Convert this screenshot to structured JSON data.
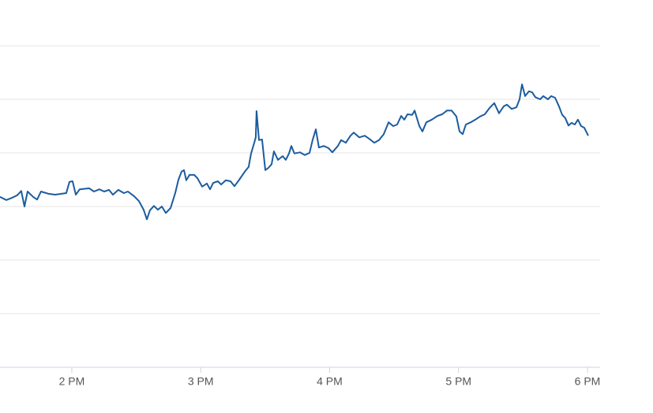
{
  "chart_data": {
    "type": "line",
    "x": [
      13.443,
      13.492,
      13.534,
      13.577,
      13.608,
      13.633,
      13.657,
      13.7,
      13.731,
      13.761,
      13.816,
      13.871,
      13.957,
      13.982,
      14.006,
      14.031,
      14.061,
      14.135,
      14.172,
      14.214,
      14.251,
      14.288,
      14.319,
      14.361,
      14.404,
      14.435,
      14.484,
      14.521,
      14.557,
      14.582,
      14.606,
      14.637,
      14.668,
      14.698,
      14.729,
      14.766,
      14.802,
      14.827,
      14.851,
      14.87,
      14.888,
      14.913,
      14.95,
      14.974,
      15.011,
      15.048,
      15.072,
      15.097,
      15.133,
      15.158,
      15.194,
      15.231,
      15.262,
      15.299,
      15.342,
      15.372,
      15.391,
      15.415,
      15.427,
      15.433,
      15.452,
      15.476,
      15.501,
      15.525,
      15.55,
      15.568,
      15.599,
      15.636,
      15.66,
      15.685,
      15.703,
      15.727,
      15.77,
      15.807,
      15.844,
      15.868,
      15.893,
      15.917,
      15.954,
      15.991,
      16.021,
      16.064,
      16.089,
      16.126,
      16.162,
      16.187,
      16.23,
      16.273,
      16.309,
      16.346,
      16.383,
      16.42,
      16.457,
      16.493,
      16.524,
      16.555,
      16.579,
      16.604,
      16.64,
      16.659,
      16.677,
      16.696,
      16.72,
      16.75,
      16.793,
      16.836,
      16.873,
      16.91,
      16.946,
      16.983,
      17.008,
      17.032,
      17.057,
      17.094,
      17.13,
      17.167,
      17.204,
      17.241,
      17.277,
      17.314,
      17.351,
      17.375,
      17.412,
      17.449,
      17.473,
      17.492,
      17.516,
      17.547,
      17.571,
      17.596,
      17.633,
      17.657,
      17.694,
      17.718,
      17.749,
      17.779,
      17.804,
      17.828,
      17.853,
      17.877,
      17.902,
      17.926,
      17.951,
      17.975,
      18.006
    ],
    "series": [
      {
        "color": "#1b5c9e",
        "values": [
          3.18,
          3.12,
          3.16,
          3.21,
          3.29,
          3.0,
          3.28,
          3.18,
          3.13,
          3.28,
          3.24,
          3.22,
          3.25,
          3.46,
          3.47,
          3.22,
          3.32,
          3.34,
          3.28,
          3.32,
          3.28,
          3.31,
          3.22,
          3.31,
          3.25,
          3.28,
          3.19,
          3.1,
          2.94,
          2.76,
          2.93,
          3.01,
          2.94,
          3.0,
          2.88,
          2.97,
          3.25,
          3.5,
          3.65,
          3.68,
          3.49,
          3.59,
          3.59,
          3.53,
          3.37,
          3.43,
          3.32,
          3.44,
          3.47,
          3.41,
          3.49,
          3.47,
          3.38,
          3.5,
          3.65,
          3.74,
          3.99,
          4.19,
          4.29,
          4.78,
          4.24,
          4.25,
          3.68,
          3.72,
          3.79,
          4.03,
          3.87,
          3.94,
          3.87,
          3.99,
          4.13,
          3.99,
          4.01,
          3.96,
          4.0,
          4.24,
          4.44,
          4.1,
          4.13,
          4.09,
          4.01,
          4.13,
          4.24,
          4.19,
          4.32,
          4.38,
          4.29,
          4.32,
          4.26,
          4.19,
          4.24,
          4.35,
          4.57,
          4.5,
          4.53,
          4.69,
          4.62,
          4.72,
          4.71,
          4.79,
          4.65,
          4.5,
          4.4,
          4.57,
          4.62,
          4.69,
          4.72,
          4.79,
          4.79,
          4.68,
          4.4,
          4.35,
          4.53,
          4.57,
          4.62,
          4.68,
          4.72,
          4.84,
          4.93,
          4.74,
          4.87,
          4.9,
          4.82,
          4.85,
          5.0,
          5.28,
          5.06,
          5.15,
          5.13,
          5.04,
          5.0,
          5.06,
          5.0,
          5.06,
          5.03,
          4.87,
          4.71,
          4.65,
          4.51,
          4.56,
          4.53,
          4.62,
          4.5,
          4.47,
          4.32
        ]
      }
    ],
    "xlim": [
      13.443,
      18.098
    ],
    "xticks": [
      {
        "value": 14,
        "label": "2 PM"
      },
      {
        "value": 15,
        "label": "3 PM"
      },
      {
        "value": 16,
        "label": "4 PM"
      },
      {
        "value": 17,
        "label": "5 PM"
      },
      {
        "value": 18,
        "label": "6 PM"
      }
    ],
    "ylim": [
      0,
      6
    ],
    "yticks": [
      0,
      1,
      2,
      3,
      4,
      5,
      6
    ],
    "grid": true
  }
}
